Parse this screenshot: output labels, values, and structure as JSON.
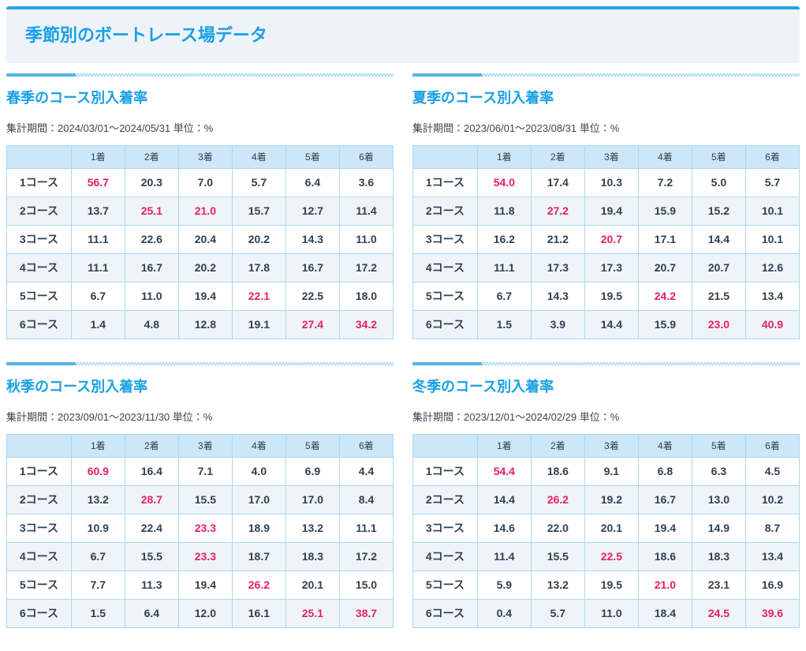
{
  "page_title": "季節別のボートレース場データ",
  "table_headers": [
    "",
    "1着",
    "2着",
    "3着",
    "4着",
    "5着",
    "6着"
  ],
  "colors": {
    "accent_blue": "#18a0e4",
    "highlight_pink": "#e71e63",
    "table_header_bg": "#cbe7f8",
    "table_border": "#aed7f0",
    "alt_row_bg": "#eef4fa",
    "header_box_bg": "#edf3f9"
  },
  "sections": [
    {
      "season": "spring",
      "heading": "春季のコース別入着率",
      "period_label": "集計期間：2024/03/01〜2024/05/31 単位：%",
      "rows": [
        {
          "label": "1コース",
          "values": [
            "56.7",
            "20.3",
            "7.0",
            "5.7",
            "6.4",
            "3.6"
          ],
          "highlights": [
            0
          ]
        },
        {
          "label": "2コース",
          "values": [
            "13.7",
            "25.1",
            "21.0",
            "15.7",
            "12.7",
            "11.4"
          ],
          "highlights": [
            1,
            2
          ]
        },
        {
          "label": "3コース",
          "values": [
            "11.1",
            "22.6",
            "20.4",
            "20.2",
            "14.3",
            "11.0"
          ],
          "highlights": []
        },
        {
          "label": "4コース",
          "values": [
            "11.1",
            "16.7",
            "20.2",
            "17.8",
            "16.7",
            "17.2"
          ],
          "highlights": []
        },
        {
          "label": "5コース",
          "values": [
            "6.7",
            "11.0",
            "19.4",
            "22.1",
            "22.5",
            "18.0"
          ],
          "highlights": [
            3
          ]
        },
        {
          "label": "6コース",
          "values": [
            "1.4",
            "4.8",
            "12.8",
            "19.1",
            "27.4",
            "34.2"
          ],
          "highlights": [
            4,
            5
          ]
        }
      ]
    },
    {
      "season": "summer",
      "heading": "夏季のコース別入着率",
      "period_label": "集計期間：2023/06/01〜2023/08/31 単位：%",
      "rows": [
        {
          "label": "1コース",
          "values": [
            "54.0",
            "17.4",
            "10.3",
            "7.2",
            "5.0",
            "5.7"
          ],
          "highlights": [
            0
          ]
        },
        {
          "label": "2コース",
          "values": [
            "11.8",
            "27.2",
            "19.4",
            "15.9",
            "15.2",
            "10.1"
          ],
          "highlights": [
            1
          ]
        },
        {
          "label": "3コース",
          "values": [
            "16.2",
            "21.2",
            "20.7",
            "17.1",
            "14.4",
            "10.1"
          ],
          "highlights": [
            2
          ]
        },
        {
          "label": "4コース",
          "values": [
            "11.1",
            "17.3",
            "17.3",
            "20.7",
            "20.7",
            "12.6"
          ],
          "highlights": []
        },
        {
          "label": "5コース",
          "values": [
            "6.7",
            "14.3",
            "19.5",
            "24.2",
            "21.5",
            "13.4"
          ],
          "highlights": [
            3
          ]
        },
        {
          "label": "6コース",
          "values": [
            "1.5",
            "3.9",
            "14.4",
            "15.9",
            "23.0",
            "40.9"
          ],
          "highlights": [
            4,
            5
          ]
        }
      ]
    },
    {
      "season": "autumn",
      "heading": "秋季のコース別入着率",
      "period_label": "集計期間：2023/09/01〜2023/11/30 単位：%",
      "rows": [
        {
          "label": "1コース",
          "values": [
            "60.9",
            "16.4",
            "7.1",
            "4.0",
            "6.9",
            "4.4"
          ],
          "highlights": [
            0
          ]
        },
        {
          "label": "2コース",
          "values": [
            "13.2",
            "28.7",
            "15.5",
            "17.0",
            "17.0",
            "8.4"
          ],
          "highlights": [
            1
          ]
        },
        {
          "label": "3コース",
          "values": [
            "10.9",
            "22.4",
            "23.3",
            "18.9",
            "13.2",
            "11.1"
          ],
          "highlights": [
            2
          ]
        },
        {
          "label": "4コース",
          "values": [
            "6.7",
            "15.5",
            "23.3",
            "18.7",
            "18.3",
            "17.2"
          ],
          "highlights": [
            2
          ]
        },
        {
          "label": "5コース",
          "values": [
            "7.7",
            "11.3",
            "19.4",
            "26.2",
            "20.1",
            "15.0"
          ],
          "highlights": [
            3
          ]
        },
        {
          "label": "6コース",
          "values": [
            "1.5",
            "6.4",
            "12.0",
            "16.1",
            "25.1",
            "38.7"
          ],
          "highlights": [
            4,
            5
          ]
        }
      ]
    },
    {
      "season": "winter",
      "heading": "冬季のコース別入着率",
      "period_label": "集計期間：2023/12/01〜2024/02/29 単位：%",
      "rows": [
        {
          "label": "1コース",
          "values": [
            "54.4",
            "18.6",
            "9.1",
            "6.8",
            "6.3",
            "4.5"
          ],
          "highlights": [
            0
          ]
        },
        {
          "label": "2コース",
          "values": [
            "14.4",
            "26.2",
            "19.2",
            "16.7",
            "13.0",
            "10.2"
          ],
          "highlights": [
            1
          ]
        },
        {
          "label": "3コース",
          "values": [
            "14.6",
            "22.0",
            "20.1",
            "19.4",
            "14.9",
            "8.7"
          ],
          "highlights": []
        },
        {
          "label": "4コース",
          "values": [
            "11.4",
            "15.5",
            "22.5",
            "18.6",
            "18.3",
            "13.4"
          ],
          "highlights": [
            2
          ]
        },
        {
          "label": "5コース",
          "values": [
            "5.9",
            "13.2",
            "19.5",
            "21.0",
            "23.1",
            "16.9"
          ],
          "highlights": [
            3
          ]
        },
        {
          "label": "6コース",
          "values": [
            "0.4",
            "5.7",
            "11.0",
            "18.4",
            "24.5",
            "39.6"
          ],
          "highlights": [
            4,
            5
          ]
        }
      ]
    }
  ]
}
